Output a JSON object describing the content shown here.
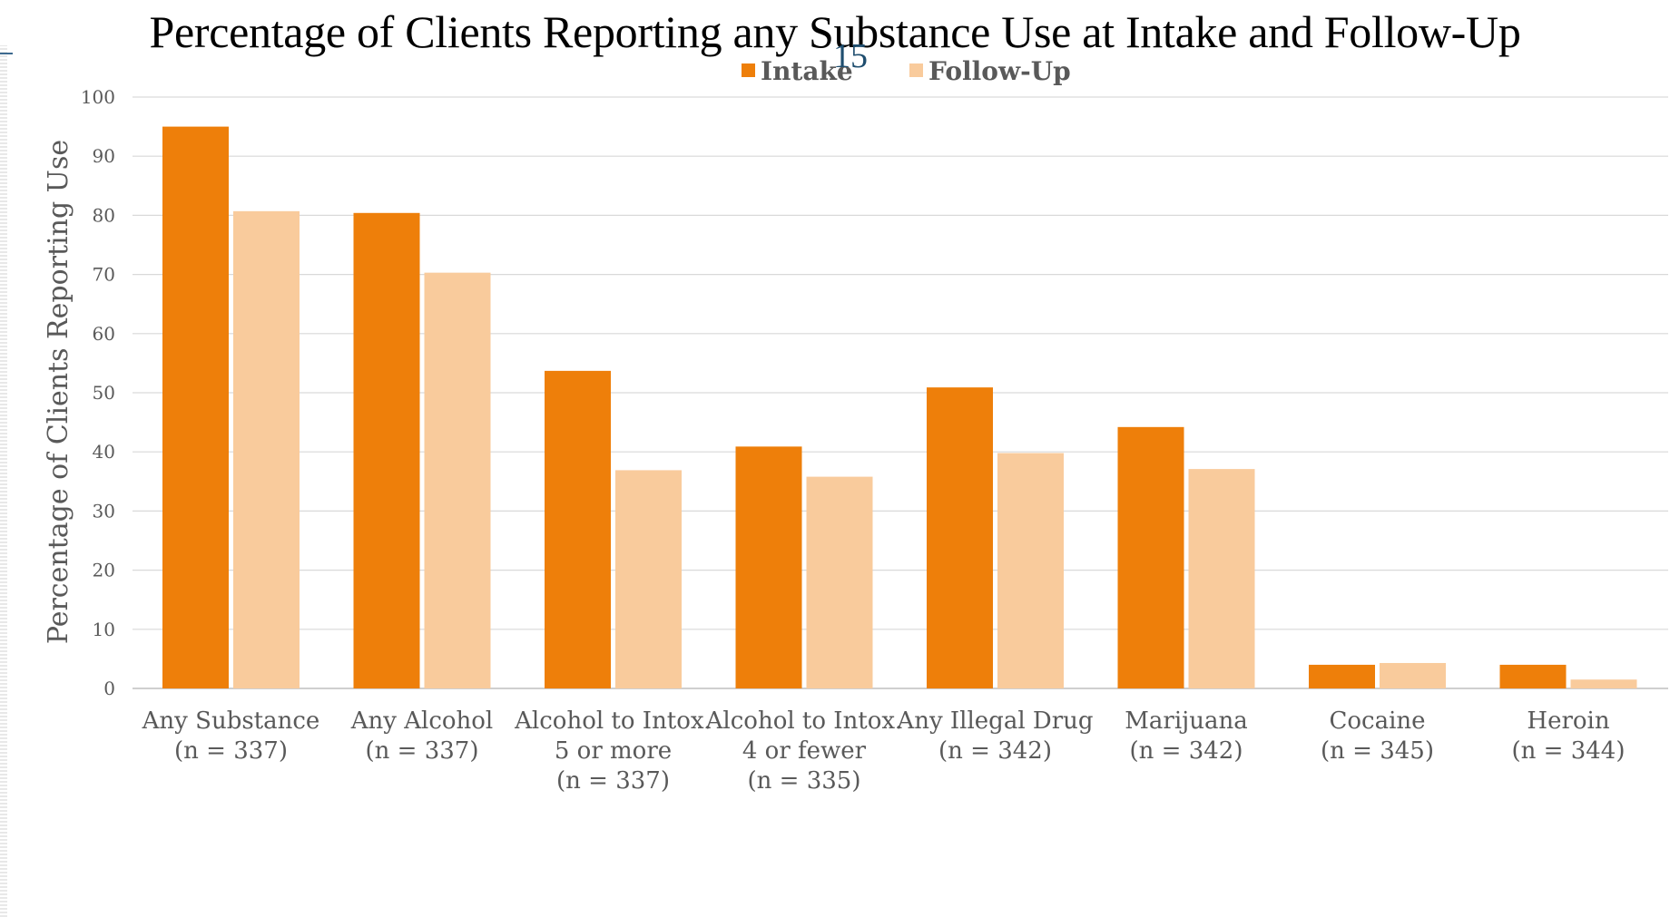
{
  "slide": {
    "number": "15"
  },
  "colors": {
    "intake": "#ee7f0a",
    "follow_up": "#f9cb9c",
    "grid": "#d9d9d9",
    "text": "#595959"
  },
  "chart_data": {
    "type": "bar",
    "title": "Percentage of Clients Reporting any Substance Use at Intake and Follow-Up",
    "ylabel": "Percentage of Clients Reporting Use",
    "xlabel": "",
    "ylim": [
      0,
      100
    ],
    "yticks": [
      0,
      10,
      20,
      30,
      40,
      50,
      60,
      70,
      80,
      90,
      100
    ],
    "grid": true,
    "legend_position": "top-center",
    "categories": [
      [
        "Any Substance",
        "(n = 337)"
      ],
      [
        "Any Alcohol",
        "(n = 337)"
      ],
      [
        "Alcohol to Intox.",
        "5 or more",
        "(n = 337)"
      ],
      [
        "Alcohol to Intox.",
        "4 or fewer",
        "(n = 335)"
      ],
      [
        "Any Illegal Drug",
        "(n = 342)"
      ],
      [
        "Marijuana",
        "(n = 342)"
      ],
      [
        "Cocaine",
        "(n = 345)"
      ],
      [
        "Heroin",
        "(n = 344)"
      ]
    ],
    "series": [
      {
        "name": "Intake",
        "color": "#ee7f0a",
        "values": [
          95,
          80.4,
          53.7,
          40.9,
          50.9,
          44.2,
          4,
          4
        ]
      },
      {
        "name": "Follow-Up",
        "color": "#f9cb9c",
        "values": [
          80.7,
          70.3,
          36.9,
          35.8,
          39.8,
          37.1,
          4.3,
          1.5
        ]
      }
    ]
  }
}
